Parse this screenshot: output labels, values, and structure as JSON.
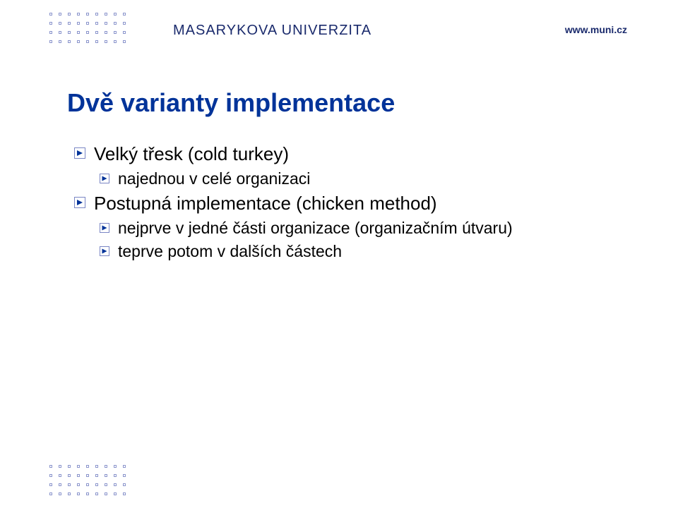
{
  "header": {
    "university": "MASARYKOVA UNIVERZITA",
    "url": "www.muni.cz"
  },
  "title": "Dvě varianty implementace",
  "bullets": {
    "b0": "Velký třesk (cold turkey)",
    "b1": "najednou v celé organizaci",
    "b2": "Postupná implementace (chicken method)",
    "b3": "nejprve v jedné části organizace (organizačním útvaru)",
    "b4": "teprve potom v dalších částech"
  },
  "colors": {
    "brand": "#1a2a6c",
    "title": "#003399",
    "bullet_border": "#7a86c4",
    "bullet_arrow": "#003399",
    "dot_border": "#8b95cc",
    "text": "#000000",
    "bg": "#ffffff"
  },
  "dot_grid": {
    "rows": 4,
    "cols": 9
  }
}
